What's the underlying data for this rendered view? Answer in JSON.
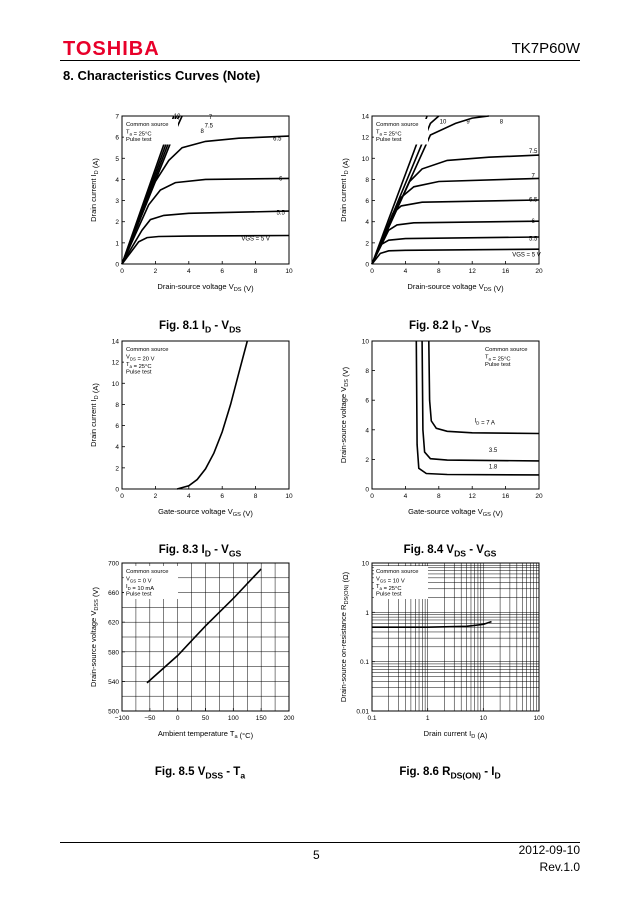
{
  "header": {
    "logo": "TOSHIBA",
    "part_number": "TK7P60W"
  },
  "section_title": "8.  Characteristics Curves (Note)",
  "footer": {
    "page": "5",
    "date": "2012-09-10",
    "revision": "Rev.1.0"
  },
  "chart_data": [
    {
      "id": "fig81",
      "type": "line",
      "caption": "Fig. 8.1   I_D - V_DS",
      "xlabel": "Drain-source voltage   V_DS   (V)",
      "ylabel": "Drain current   I_D   (A)",
      "xlim": [
        0,
        10
      ],
      "ylim": [
        0,
        7
      ],
      "xticks": [
        0,
        2,
        4,
        6,
        8,
        10
      ],
      "yticks": [
        0,
        1,
        2,
        3,
        4,
        5,
        6,
        7
      ],
      "xscale": "linear",
      "yscale": "linear",
      "grid_x": [],
      "grid_y": [],
      "legend": [
        "Common source",
        "T_a = 25°C",
        "Pulse test"
      ],
      "series": [
        {
          "name": "VGS = 5 V",
          "label_pos": [
            8.0,
            1.1
          ],
          "points": [
            [
              0,
              0
            ],
            [
              1.0,
              1.05
            ],
            [
              1.5,
              1.25
            ],
            [
              2.2,
              1.3
            ],
            [
              4,
              1.32
            ],
            [
              10,
              1.35
            ]
          ]
        },
        {
          "name": "5.5",
          "label_pos": [
            9.5,
            2.35
          ],
          "points": [
            [
              0,
              0
            ],
            [
              1.2,
              1.6
            ],
            [
              1.7,
              2.1
            ],
            [
              2.5,
              2.3
            ],
            [
              4,
              2.4
            ],
            [
              10,
              2.5
            ]
          ]
        },
        {
          "name": "6",
          "label_pos": [
            9.5,
            3.95
          ],
          "points": [
            [
              0,
              0
            ],
            [
              1.6,
              2.8
            ],
            [
              2.3,
              3.5
            ],
            [
              3.2,
              3.85
            ],
            [
              5,
              4.0
            ],
            [
              10,
              4.05
            ]
          ]
        },
        {
          "name": "6.5",
          "label_pos": [
            9.3,
            5.85
          ],
          "points": [
            [
              0,
              0
            ],
            [
              2.0,
              3.9
            ],
            [
              2.8,
              4.9
            ],
            [
              3.6,
              5.5
            ],
            [
              5,
              5.8
            ],
            [
              7,
              5.95
            ],
            [
              10,
              6.05
            ]
          ]
        },
        {
          "name": "7",
          "label_pos": [
            5.3,
            6.85
          ],
          "points": [
            [
              0,
              0
            ],
            [
              3.2,
              6.3
            ],
            [
              3.6,
              7.0
            ]
          ]
        },
        {
          "name": "7.5",
          "label_pos": [
            5.2,
            6.45
          ],
          "points": [
            [
              0,
              0
            ],
            [
              3.4,
              7.0
            ]
          ]
        },
        {
          "name": "8",
          "label_pos": [
            4.8,
            6.2
          ],
          "points": [
            [
              0,
              0
            ],
            [
              3.25,
              7.0
            ]
          ]
        },
        {
          "name": "10",
          "label_pos": [
            3.3,
            6.9
          ],
          "points": [
            [
              0,
              0
            ],
            [
              3.1,
              7.0
            ]
          ]
        }
      ]
    },
    {
      "id": "fig82",
      "type": "line",
      "caption": "Fig. 8.2   I_D - V_DS",
      "xlabel": "Drain-source voltage   V_DS   (V)",
      "ylabel": "Drain current   I_D   (A)",
      "xlim": [
        0,
        20
      ],
      "ylim": [
        0,
        14
      ],
      "xticks": [
        0,
        4,
        8,
        12,
        16,
        20
      ],
      "yticks": [
        0,
        2,
        4,
        6,
        8,
        10,
        12,
        14
      ],
      "xscale": "linear",
      "yscale": "linear",
      "grid_x": [],
      "grid_y": [],
      "legend": [
        "Common source",
        "T_a = 25°C",
        "Pulse test"
      ],
      "series": [
        {
          "name": "VGS = 5 V",
          "label_pos": [
            18.5,
            0.7
          ],
          "points": [
            [
              0,
              0
            ],
            [
              1,
              1.0
            ],
            [
              2,
              1.25
            ],
            [
              4,
              1.3
            ],
            [
              20,
              1.4
            ]
          ]
        },
        {
          "name": "5.5",
          "label_pos": [
            19.3,
            2.2
          ],
          "points": [
            [
              0,
              0
            ],
            [
              1,
              1.8
            ],
            [
              2,
              2.25
            ],
            [
              4,
              2.4
            ],
            [
              20,
              2.55
            ]
          ]
        },
        {
          "name": "6",
          "label_pos": [
            19.3,
            3.9
          ],
          "points": [
            [
              0,
              0
            ],
            [
              2,
              3.2
            ],
            [
              3,
              3.7
            ],
            [
              5,
              3.9
            ],
            [
              20,
              4.05
            ]
          ]
        },
        {
          "name": "6.5",
          "label_pos": [
            19.3,
            5.9
          ],
          "points": [
            [
              0,
              0
            ],
            [
              2.5,
              4.8
            ],
            [
              3.5,
              5.5
            ],
            [
              6,
              5.85
            ],
            [
              20,
              6.05
            ]
          ]
        },
        {
          "name": "7",
          "label_pos": [
            19.3,
            8.2
          ],
          "points": [
            [
              0,
              0
            ],
            [
              3.5,
              6.3
            ],
            [
              5,
              7.3
            ],
            [
              8,
              7.8
            ],
            [
              20,
              8.1
            ]
          ]
        },
        {
          "name": "7.5",
          "label_pos": [
            19.3,
            10.5
          ],
          "points": [
            [
              0,
              0
            ],
            [
              4.5,
              7.8
            ],
            [
              6,
              9.0
            ],
            [
              9,
              9.8
            ],
            [
              14,
              10.1
            ],
            [
              20,
              10.3
            ]
          ]
        },
        {
          "name": "8",
          "label_pos": [
            15.5,
            13.3
          ],
          "points": [
            [
              0,
              0
            ],
            [
              7,
              12.2
            ],
            [
              10,
              13.3
            ],
            [
              12,
              13.8
            ],
            [
              14,
              14.0
            ]
          ]
        },
        {
          "name": "9",
          "label_pos": [
            11.5,
            13.3
          ],
          "points": [
            [
              0,
              0
            ],
            [
              7,
              13.3
            ],
            [
              8,
              14.0
            ]
          ]
        },
        {
          "name": "10",
          "label_pos": [
            8.5,
            13.3
          ],
          "points": [
            [
              0,
              0
            ],
            [
              6.6,
              14.0
            ]
          ]
        }
      ]
    },
    {
      "id": "fig83",
      "type": "line",
      "caption": "Fig. 8.3   I_D - V_GS",
      "xlabel": "Gate-source voltage   V_GS   (V)",
      "ylabel": "Drain current   I_D   (A)",
      "xlim": [
        0,
        10
      ],
      "ylim": [
        0,
        14
      ],
      "xticks": [
        0,
        2,
        4,
        6,
        8,
        10
      ],
      "yticks": [
        0,
        2,
        4,
        6,
        8,
        10,
        12,
        14
      ],
      "xscale": "linear",
      "yscale": "linear",
      "grid_x": [],
      "grid_y": [],
      "legend": [
        "Common source",
        "V_DS = 20 V",
        "T_a = 25°C",
        "Pulse test"
      ],
      "series": [
        {
          "name": "",
          "points": [
            [
              3.3,
              0
            ],
            [
              4,
              0.3
            ],
            [
              4.5,
              0.9
            ],
            [
              5,
              1.9
            ],
            [
              5.5,
              3.4
            ],
            [
              6,
              5.4
            ],
            [
              6.5,
              8.0
            ],
            [
              7,
              11.0
            ],
            [
              7.5,
              14.0
            ]
          ]
        }
      ]
    },
    {
      "id": "fig84",
      "type": "line",
      "caption": "Fig. 8.4   V_DS - V_GS",
      "xlabel": "Gate-source voltage   V_GS   (V)",
      "ylabel": "Drain-source voltage   V_DS   (V)",
      "xlim": [
        0,
        20
      ],
      "ylim": [
        0,
        10
      ],
      "xticks": [
        0,
        4,
        8,
        12,
        16,
        20
      ],
      "yticks": [
        0,
        2,
        4,
        6,
        8,
        10
      ],
      "xscale": "linear",
      "yscale": "linear",
      "grid_x": [],
      "grid_y": [],
      "legend": [
        "Common source",
        "T_a = 25°C",
        "Pulse test"
      ],
      "series": [
        {
          "name": "I_D = 7 A",
          "label_pos": [
            13.5,
            4.5
          ],
          "points": [
            [
              6.8,
              10
            ],
            [
              6.9,
              6
            ],
            [
              7.1,
              4.6
            ],
            [
              7.7,
              4.1
            ],
            [
              9,
              3.9
            ],
            [
              12,
              3.8
            ],
            [
              20,
              3.75
            ]
          ]
        },
        {
          "name": "3.5",
          "label_pos": [
            14.5,
            2.5
          ],
          "points": [
            [
              6.0,
              10
            ],
            [
              6.1,
              4
            ],
            [
              6.3,
              2.5
            ],
            [
              7,
              2.05
            ],
            [
              9,
              1.95
            ],
            [
              20,
              1.9
            ]
          ]
        },
        {
          "name": "1.8",
          "label_pos": [
            14.5,
            1.4
          ],
          "points": [
            [
              5.3,
              10
            ],
            [
              5.4,
              3
            ],
            [
              5.6,
              1.4
            ],
            [
              6.5,
              1.05
            ],
            [
              9,
              0.98
            ],
            [
              20,
              0.95
            ]
          ]
        }
      ]
    },
    {
      "id": "fig85",
      "type": "line",
      "caption": "Fig. 8.5   V_DSS - T_a",
      "xlabel": "Ambient temperature   T_a   (°C)",
      "ylabel": "Drain-source voltage   V_DSS   (V)",
      "xlim": [
        -100,
        200
      ],
      "ylim": [
        500,
        700
      ],
      "xticks": [
        -100,
        -50,
        0,
        50,
        100,
        150,
        200
      ],
      "yticks": [
        500,
        540,
        580,
        620,
        660,
        700
      ],
      "xscale": "linear",
      "yscale": "linear",
      "grid_x": [
        -75,
        -50,
        -25,
        0,
        25,
        50,
        75,
        100,
        125,
        150,
        175
      ],
      "grid_y": [
        520,
        540,
        560,
        580,
        600,
        620,
        640,
        660,
        680
      ],
      "legend": [
        "Common source",
        "V_GS = 0 V",
        "I_D = 10 mA",
        "Pulse test"
      ],
      "series": [
        {
          "name": "",
          "points": [
            [
              -55,
              538
            ],
            [
              0,
              575
            ],
            [
              50,
              615
            ],
            [
              100,
              652
            ],
            [
              150,
              692
            ]
          ]
        }
      ]
    },
    {
      "id": "fig86",
      "type": "line",
      "caption": "Fig. 8.6   R_DS(ON) - I_D",
      "xlabel": "Drain current   I_D   (A)",
      "ylabel": "Drain-source on-resistance   R_DS(ON)   (Ω)",
      "xlim": [
        0.1,
        100
      ],
      "ylim": [
        0.01,
        10
      ],
      "xticks": [
        0.1,
        1,
        10,
        100
      ],
      "yticks": [
        0.01,
        0.1,
        1,
        10
      ],
      "xscale": "log",
      "yscale": "log",
      "legend": [
        "Common source",
        "V_GS = 10 V",
        "T_a = 25°C",
        "Pulse test"
      ],
      "series": [
        {
          "name": "",
          "points": [
            [
              0.1,
              0.5
            ],
            [
              1,
              0.5
            ],
            [
              5,
              0.52
            ],
            [
              10,
              0.57
            ],
            [
              14,
              0.65
            ]
          ]
        }
      ]
    }
  ]
}
